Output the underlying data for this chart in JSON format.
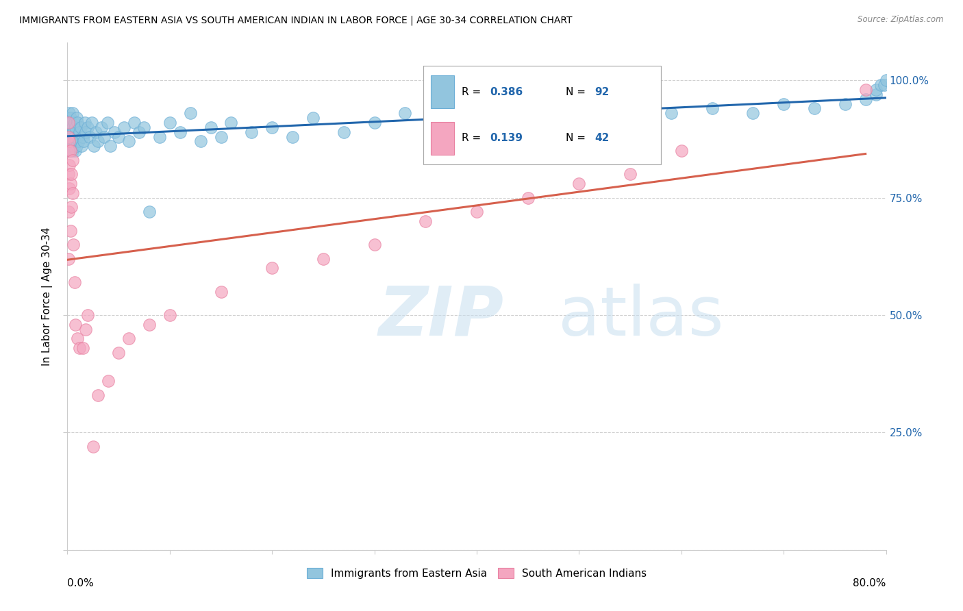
{
  "title": "IMMIGRANTS FROM EASTERN ASIA VS SOUTH AMERICAN INDIAN IN LABOR FORCE | AGE 30-34 CORRELATION CHART",
  "source": "Source: ZipAtlas.com",
  "ylabel": "In Labor Force | Age 30-34",
  "ytick_labels": [
    "",
    "25.0%",
    "50.0%",
    "75.0%",
    "100.0%"
  ],
  "legend_label1": "Immigrants from Eastern Asia",
  "legend_label2": "South American Indians",
  "R1": 0.386,
  "N1": 92,
  "R2": 0.139,
  "N2": 42,
  "blue_color": "#92c5de",
  "pink_color": "#f4a6c0",
  "blue_line_color": "#2166ac",
  "pink_line_color": "#d6604d",
  "blue_edge_color": "#6baed6",
  "pink_edge_color": "#e87fa0",
  "blue_x": [
    0.001,
    0.001,
    0.001,
    0.001,
    0.002,
    0.002,
    0.002,
    0.002,
    0.002,
    0.003,
    0.003,
    0.003,
    0.003,
    0.003,
    0.004,
    0.004,
    0.004,
    0.004,
    0.005,
    0.005,
    0.005,
    0.005,
    0.006,
    0.006,
    0.007,
    0.007,
    0.007,
    0.008,
    0.008,
    0.009,
    0.009,
    0.01,
    0.01,
    0.011,
    0.012,
    0.013,
    0.014,
    0.015,
    0.016,
    0.017,
    0.018,
    0.02,
    0.022,
    0.024,
    0.026,
    0.028,
    0.03,
    0.033,
    0.036,
    0.039,
    0.042,
    0.046,
    0.05,
    0.055,
    0.06,
    0.065,
    0.07,
    0.075,
    0.08,
    0.09,
    0.1,
    0.11,
    0.12,
    0.13,
    0.14,
    0.15,
    0.16,
    0.18,
    0.2,
    0.22,
    0.24,
    0.27,
    0.3,
    0.33,
    0.36,
    0.39,
    0.43,
    0.47,
    0.51,
    0.55,
    0.59,
    0.63,
    0.67,
    0.7,
    0.73,
    0.76,
    0.78,
    0.79,
    0.79,
    0.795,
    0.798,
    0.8
  ],
  "blue_y": [
    0.9,
    0.88,
    0.92,
    0.86,
    0.89,
    0.87,
    0.91,
    0.85,
    0.93,
    0.88,
    0.86,
    0.9,
    0.85,
    0.92,
    0.87,
    0.89,
    0.91,
    0.86,
    0.88,
    0.9,
    0.85,
    0.93,
    0.86,
    0.89,
    0.87,
    0.91,
    0.88,
    0.85,
    0.9,
    0.86,
    0.92,
    0.88,
    0.91,
    0.87,
    0.89,
    0.9,
    0.86,
    0.88,
    0.87,
    0.91,
    0.89,
    0.9,
    0.88,
    0.91,
    0.86,
    0.89,
    0.87,
    0.9,
    0.88,
    0.91,
    0.86,
    0.89,
    0.88,
    0.9,
    0.87,
    0.91,
    0.89,
    0.9,
    0.72,
    0.88,
    0.91,
    0.89,
    0.93,
    0.87,
    0.9,
    0.88,
    0.91,
    0.89,
    0.9,
    0.88,
    0.92,
    0.89,
    0.91,
    0.93,
    0.9,
    0.91,
    0.92,
    0.9,
    0.93,
    0.92,
    0.93,
    0.94,
    0.93,
    0.95,
    0.94,
    0.95,
    0.96,
    0.97,
    0.98,
    0.99,
    0.99,
    1.0
  ],
  "pink_x": [
    0.001,
    0.001,
    0.001,
    0.001,
    0.001,
    0.001,
    0.002,
    0.002,
    0.002,
    0.003,
    0.003,
    0.003,
    0.004,
    0.004,
    0.005,
    0.005,
    0.006,
    0.007,
    0.008,
    0.01,
    0.012,
    0.015,
    0.018,
    0.02,
    0.025,
    0.03,
    0.04,
    0.05,
    0.06,
    0.08,
    0.1,
    0.15,
    0.2,
    0.25,
    0.3,
    0.35,
    0.4,
    0.45,
    0.5,
    0.55,
    0.6,
    0.78
  ],
  "pink_y": [
    0.88,
    0.85,
    0.91,
    0.8,
    0.72,
    0.62,
    0.87,
    0.82,
    0.77,
    0.85,
    0.78,
    0.68,
    0.8,
    0.73,
    0.83,
    0.76,
    0.65,
    0.57,
    0.48,
    0.45,
    0.43,
    0.43,
    0.47,
    0.5,
    0.22,
    0.33,
    0.36,
    0.42,
    0.45,
    0.48,
    0.5,
    0.55,
    0.6,
    0.62,
    0.65,
    0.7,
    0.72,
    0.75,
    0.78,
    0.8,
    0.85,
    0.98
  ]
}
